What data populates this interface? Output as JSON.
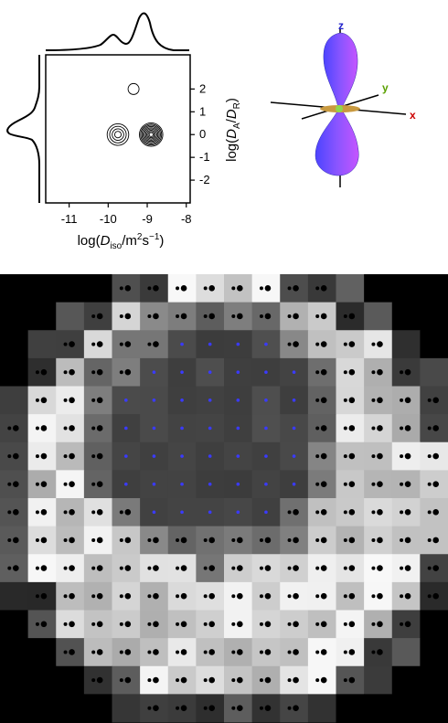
{
  "plot": {
    "xaxis": {
      "ticks": [
        "-11",
        "-10",
        "-9",
        "-8"
      ],
      "tick_values": [
        -11,
        -10,
        -9,
        -8
      ],
      "label_parts": [
        "log(",
        "D",
        "iso",
        "/m",
        "2",
        "s",
        "−1",
        ")"
      ],
      "range": [
        -11.6,
        -7.9
      ]
    },
    "yaxis": {
      "ticks": [
        "2",
        "1",
        "0",
        "-1",
        "-2"
      ],
      "tick_values": [
        2,
        1,
        0,
        -1,
        -2
      ],
      "label_parts": [
        "log(",
        "D",
        "A",
        "/",
        "D",
        "R",
        ")"
      ],
      "range": [
        -3.0,
        3.5
      ]
    },
    "peaks": [
      {
        "log_diso": -9.75,
        "log_da_dr": 0.0,
        "rings": 4
      },
      {
        "log_diso": -8.9,
        "log_da_dr": 0.0,
        "rings": 9
      },
      {
        "log_diso": -9.35,
        "log_da_dr": 2.0,
        "rings": 1
      }
    ]
  },
  "glyph3d": {
    "axes": {
      "x": "x",
      "y": "y",
      "z": "z"
    },
    "colors": {
      "x": "#cc0000",
      "y": "#5aa000",
      "z": "#2020cc"
    }
  },
  "voxel_map": {
    "rows": 16,
    "cols": 16,
    "color_blue": "#3a3aff",
    "dot_color": "#000000"
  }
}
